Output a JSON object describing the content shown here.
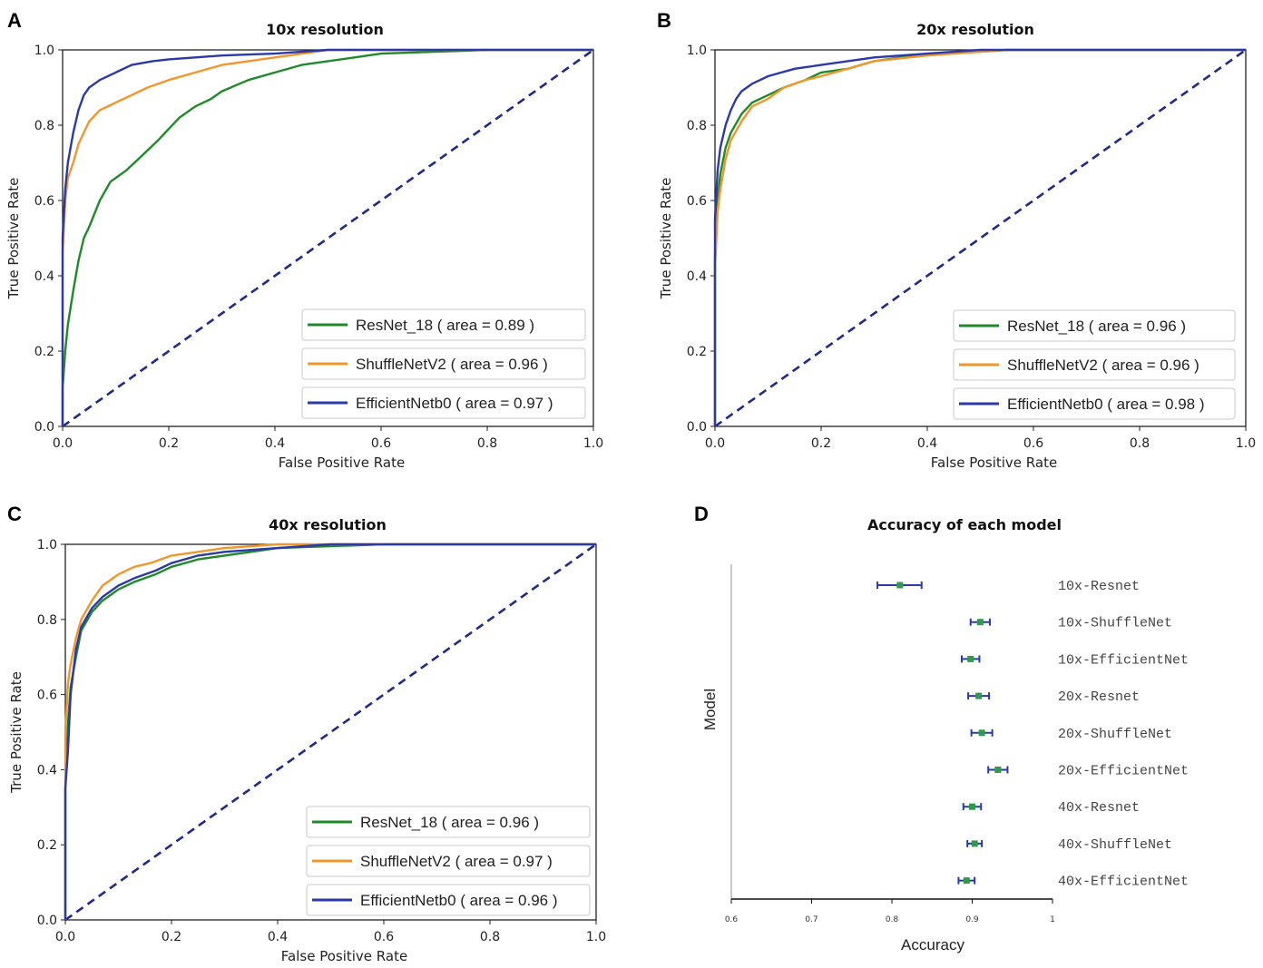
{
  "chart_data": [
    {
      "panel": "A",
      "type": "line",
      "title": "10x resolution",
      "xlabel": "False Positive Rate",
      "ylabel": "True Positive Rate",
      "xlim": [
        0,
        1
      ],
      "ylim": [
        0,
        1
      ],
      "xticks": [
        "0.0",
        "0.2",
        "0.4",
        "0.6",
        "0.8",
        "1.0"
      ],
      "yticks": [
        "0.0",
        "0.2",
        "0.4",
        "0.6",
        "0.8",
        "1.0"
      ],
      "legend_position": "bottom-right",
      "series": [
        {
          "name": "ResNet_18 ( area = 0.89 )",
          "color": "#1f8a2a",
          "x": [
            0,
            0,
            0.005,
            0.01,
            0.02,
            0.03,
            0.04,
            0.05,
            0.07,
            0.09,
            0.12,
            0.15,
            0.18,
            0.2,
            0.22,
            0.25,
            0.28,
            0.3,
            0.35,
            0.4,
            0.45,
            0.5,
            0.55,
            0.6,
            0.7,
            0.8,
            1.0
          ],
          "y": [
            0,
            0.1,
            0.2,
            0.27,
            0.36,
            0.44,
            0.5,
            0.53,
            0.6,
            0.65,
            0.68,
            0.72,
            0.76,
            0.79,
            0.82,
            0.85,
            0.87,
            0.89,
            0.92,
            0.94,
            0.96,
            0.97,
            0.98,
            0.99,
            0.995,
            1.0,
            1.0
          ]
        },
        {
          "name": "ShuffleNetV2 ( area = 0.96 )",
          "color": "#f2962a",
          "x": [
            0,
            0,
            0.005,
            0.01,
            0.02,
            0.03,
            0.05,
            0.07,
            0.1,
            0.13,
            0.16,
            0.2,
            0.25,
            0.3,
            0.35,
            0.4,
            0.5,
            1.0
          ],
          "y": [
            0,
            0.46,
            0.6,
            0.66,
            0.7,
            0.75,
            0.81,
            0.84,
            0.86,
            0.88,
            0.9,
            0.92,
            0.94,
            0.96,
            0.97,
            0.98,
            1.0,
            1.0
          ]
        },
        {
          "name": "EfficientNetb0 ( area = 0.97 )",
          "color": "#2b3aa8",
          "x": [
            0,
            0,
            0.005,
            0.01,
            0.02,
            0.03,
            0.04,
            0.05,
            0.07,
            0.1,
            0.13,
            0.17,
            0.2,
            0.3,
            0.4,
            0.5,
            1.0
          ],
          "y": [
            0,
            0.5,
            0.63,
            0.7,
            0.78,
            0.84,
            0.88,
            0.9,
            0.92,
            0.94,
            0.96,
            0.97,
            0.975,
            0.985,
            0.99,
            1.0,
            1.0
          ]
        }
      ]
    },
    {
      "panel": "B",
      "type": "line",
      "title": "20x resolution",
      "xlabel": "False Positive Rate",
      "ylabel": "True Positive Rate",
      "xlim": [
        0,
        1
      ],
      "ylim": [
        0,
        1
      ],
      "xticks": [
        "0.0",
        "0.2",
        "0.4",
        "0.6",
        "0.8",
        "1.0"
      ],
      "yticks": [
        "0.0",
        "0.2",
        "0.4",
        "0.6",
        "0.8",
        "1.0"
      ],
      "legend_position": "bottom-right",
      "series": [
        {
          "name": "ResNet_18 ( area = 0.96 )",
          "color": "#1f8a2a",
          "x": [
            0,
            0,
            0.005,
            0.01,
            0.02,
            0.03,
            0.05,
            0.07,
            0.1,
            0.13,
            0.17,
            0.2,
            0.25,
            0.3,
            0.4,
            0.5,
            0.55,
            1.0
          ],
          "y": [
            0,
            0.45,
            0.6,
            0.67,
            0.74,
            0.78,
            0.83,
            0.86,
            0.88,
            0.9,
            0.92,
            0.94,
            0.95,
            0.97,
            0.99,
            0.995,
            1.0,
            1.0
          ]
        },
        {
          "name": "ShuffleNetV2 ( area = 0.96 )",
          "color": "#f2962a",
          "x": [
            0,
            0,
            0.005,
            0.01,
            0.02,
            0.03,
            0.05,
            0.07,
            0.1,
            0.13,
            0.17,
            0.2,
            0.25,
            0.3,
            0.4,
            0.5,
            0.55,
            1.0
          ],
          "y": [
            0,
            0.42,
            0.57,
            0.63,
            0.71,
            0.76,
            0.81,
            0.85,
            0.87,
            0.9,
            0.92,
            0.93,
            0.95,
            0.97,
            0.985,
            0.995,
            1.0,
            1.0
          ]
        },
        {
          "name": "EfficientNetb0 ( area = 0.98 )",
          "color": "#2b3aa8",
          "x": [
            0,
            0,
            0.005,
            0.01,
            0.02,
            0.03,
            0.04,
            0.05,
            0.07,
            0.1,
            0.15,
            0.2,
            0.25,
            0.3,
            0.4,
            0.5,
            1.0
          ],
          "y": [
            0,
            0.55,
            0.68,
            0.74,
            0.8,
            0.84,
            0.87,
            0.89,
            0.91,
            0.93,
            0.95,
            0.96,
            0.97,
            0.98,
            0.99,
            1.0,
            1.0
          ]
        }
      ]
    },
    {
      "panel": "C",
      "type": "line",
      "title": "40x resolution",
      "xlabel": "False Positive Rate",
      "ylabel": "True Positive Rate",
      "xlim": [
        0,
        1
      ],
      "ylim": [
        0,
        1
      ],
      "xticks": [
        "0.0",
        "0.2",
        "0.4",
        "0.6",
        "0.8",
        "1.0"
      ],
      "yticks": [
        "0.0",
        "0.2",
        "0.4",
        "0.6",
        "0.8",
        "1.0"
      ],
      "legend_position": "bottom-right",
      "series": [
        {
          "name": "ResNet_18 ( area = 0.96 )",
          "color": "#1f8a2a",
          "x": [
            0,
            0,
            0.005,
            0.01,
            0.02,
            0.03,
            0.05,
            0.07,
            0.1,
            0.13,
            0.17,
            0.2,
            0.25,
            0.3,
            0.35,
            0.4,
            0.5,
            0.6,
            1.0
          ],
          "y": [
            0,
            0.35,
            0.52,
            0.62,
            0.7,
            0.77,
            0.82,
            0.85,
            0.88,
            0.9,
            0.92,
            0.94,
            0.96,
            0.97,
            0.98,
            0.99,
            0.995,
            1.0,
            1.0
          ]
        },
        {
          "name": "ShuffleNetV2 ( area = 0.97 )",
          "color": "#f2962a",
          "x": [
            0,
            0,
            0.005,
            0.01,
            0.02,
            0.03,
            0.05,
            0.07,
            0.1,
            0.13,
            0.16,
            0.2,
            0.25,
            0.3,
            0.4,
            1.0
          ],
          "y": [
            0,
            0.5,
            0.63,
            0.68,
            0.75,
            0.8,
            0.85,
            0.89,
            0.92,
            0.94,
            0.95,
            0.97,
            0.98,
            0.99,
            1.0,
            1.0
          ]
        },
        {
          "name": "EfficientNetb0 ( area = 0.96 )",
          "color": "#2b3aa8",
          "x": [
            0,
            0,
            0.005,
            0.01,
            0.02,
            0.03,
            0.05,
            0.07,
            0.1,
            0.13,
            0.17,
            0.2,
            0.25,
            0.3,
            0.4,
            0.5,
            1.0
          ],
          "y": [
            0,
            0.35,
            0.45,
            0.6,
            0.72,
            0.78,
            0.83,
            0.86,
            0.89,
            0.91,
            0.93,
            0.95,
            0.97,
            0.98,
            0.99,
            1.0,
            1.0
          ]
        }
      ]
    },
    {
      "panel": "D",
      "type": "scatter",
      "subtype": "forest-plot",
      "title": "Accuracy of each model",
      "xlabel": "Accuracy",
      "ylabel": "Model",
      "xlim": [
        0.6,
        1
      ],
      "xticks": [
        "0.6",
        "0.7",
        "0.8",
        "0.9",
        "1"
      ],
      "point_color": "#2e9a4a",
      "errorbar_color": "#2b3aa8",
      "models": [
        "10x-Resnet",
        "10x-ShuffleNet",
        "10x-EfficientNet",
        "20x-Resnet",
        "20x-ShuffleNet",
        "20x-EfficientNet",
        "40x-Resnet",
        "40x-ShuffleNet",
        "40x-EfficientNet"
      ],
      "accuracy": [
        0.81,
        0.91,
        0.898,
        0.908,
        0.912,
        0.932,
        0.9,
        0.903,
        0.893
      ],
      "ci_low": [
        0.782,
        0.898,
        0.887,
        0.895,
        0.899,
        0.92,
        0.889,
        0.894,
        0.883
      ],
      "ci_high": [
        0.837,
        0.922,
        0.909,
        0.921,
        0.925,
        0.944,
        0.911,
        0.912,
        0.903
      ]
    }
  ]
}
